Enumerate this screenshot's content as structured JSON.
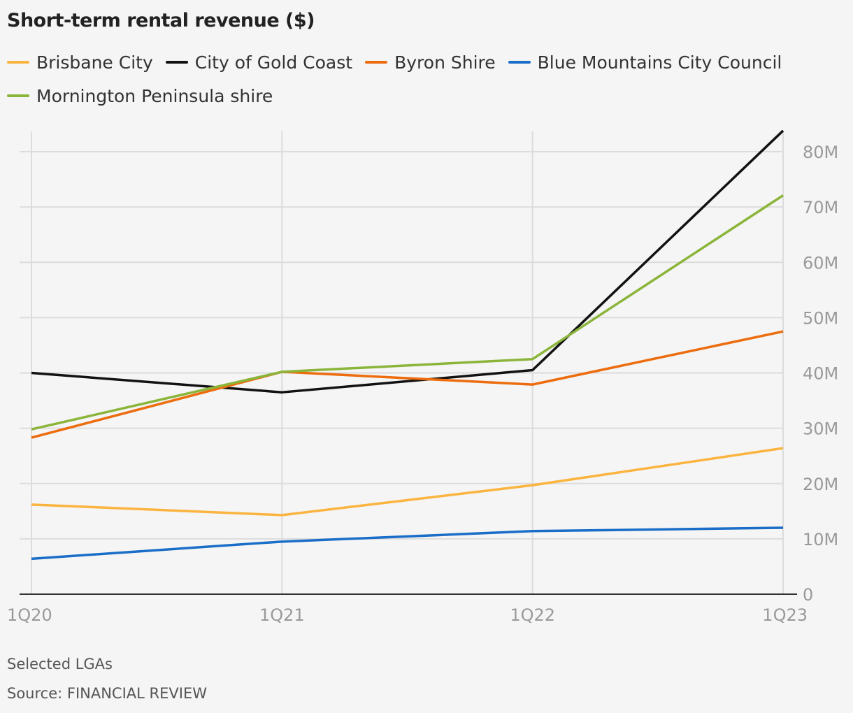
{
  "chart_data": {
    "type": "line",
    "title": "Short-term rental revenue ($)",
    "categories": [
      "1Q20",
      "1Q21",
      "1Q22",
      "1Q23"
    ],
    "ylim": [
      0,
      80000000
    ],
    "yticks": [
      0,
      10000000,
      20000000,
      30000000,
      40000000,
      50000000,
      60000000,
      70000000,
      80000000
    ],
    "ytick_labels": [
      "0",
      "10M",
      "20M",
      "30M",
      "40M",
      "50M",
      "60M",
      "70M",
      "80M"
    ],
    "y_axis_side": "right",
    "grid": true,
    "legend_position": "top",
    "series": [
      {
        "name": "Brisbane City",
        "color": "#fbb440",
        "values": [
          16200000,
          14300000,
          19700000,
          26400000
        ]
      },
      {
        "name": "City of Gold Coast",
        "color": "#121212",
        "values": [
          40000000,
          36500000,
          40500000,
          83800000
        ]
      },
      {
        "name": "Byron Shire",
        "color": "#ec6c0e",
        "values": [
          28300000,
          40200000,
          37900000,
          47500000
        ]
      },
      {
        "name": "Blue Mountains City Council",
        "color": "#1a6ec8",
        "values": [
          6400000,
          9500000,
          11400000,
          12000000
        ]
      },
      {
        "name": "Mornington Peninsula shire",
        "color": "#8bb53a",
        "values": [
          29800000,
          40200000,
          42500000,
          72100000
        ]
      }
    ]
  },
  "notes": {
    "subtitle": "Selected LGAs",
    "source": "Source: FINANCIAL REVIEW"
  }
}
